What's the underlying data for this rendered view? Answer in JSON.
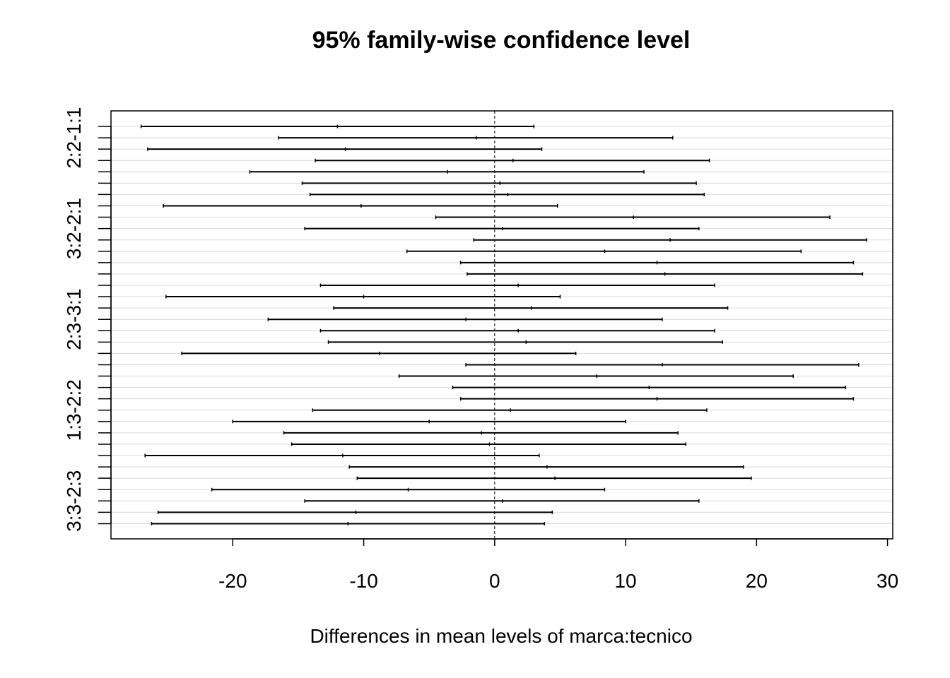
{
  "chart_data": {
    "type": "interval",
    "title": "95% family-wise confidence level",
    "xlabel": "Differences in mean levels of marca:tecnico",
    "ylabel": "",
    "xlim": [
      -29.3,
      30.4
    ],
    "xticks": [
      -20,
      -10,
      0,
      10,
      20,
      30
    ],
    "reference_line": 0,
    "grid": true,
    "printed_y_labels": [
      {
        "label": "2:2-1:1",
        "row": 1
      },
      {
        "label": "3:2-2:1",
        "row": 9
      },
      {
        "label": "2:3-3:1",
        "row": 17
      },
      {
        "label": "1:3-2:2",
        "row": 25
      },
      {
        "label": "3:3-2:3",
        "row": 33
      }
    ],
    "comparisons": [
      {
        "lwr": -27.0,
        "diff": -12.0,
        "upr": 3.0
      },
      {
        "lwr": -16.5,
        "diff": -1.4,
        "upr": 13.6
      },
      {
        "lwr": -26.5,
        "diff": -11.4,
        "upr": 3.6
      },
      {
        "lwr": -13.7,
        "diff": 1.4,
        "upr": 16.4
      },
      {
        "lwr": -18.7,
        "diff": -3.6,
        "upr": 11.4
      },
      {
        "lwr": -14.7,
        "diff": 0.4,
        "upr": 15.4
      },
      {
        "lwr": -14.1,
        "diff": 1.0,
        "upr": 16.0
      },
      {
        "lwr": -25.3,
        "diff": -10.2,
        "upr": 4.8
      },
      {
        "lwr": -4.5,
        "diff": 10.6,
        "upr": 25.6
      },
      {
        "lwr": -14.5,
        "diff": 0.6,
        "upr": 15.6
      },
      {
        "lwr": -1.6,
        "diff": 13.4,
        "upr": 28.4
      },
      {
        "lwr": -6.7,
        "diff": 8.4,
        "upr": 23.4
      },
      {
        "lwr": -2.6,
        "diff": 12.4,
        "upr": 27.4
      },
      {
        "lwr": -2.1,
        "diff": 13.0,
        "upr": 28.1
      },
      {
        "lwr": -13.3,
        "diff": 1.8,
        "upr": 16.8
      },
      {
        "lwr": -25.1,
        "diff": -10.0,
        "upr": 5.0
      },
      {
        "lwr": -12.3,
        "diff": 2.8,
        "upr": 17.8
      },
      {
        "lwr": -17.3,
        "diff": -2.2,
        "upr": 12.8
      },
      {
        "lwr": -13.3,
        "diff": 1.8,
        "upr": 16.8
      },
      {
        "lwr": -12.7,
        "diff": 2.4,
        "upr": 17.4
      },
      {
        "lwr": -23.9,
        "diff": -8.8,
        "upr": 6.2
      },
      {
        "lwr": -2.2,
        "diff": 12.8,
        "upr": 27.8
      },
      {
        "lwr": -7.3,
        "diff": 7.8,
        "upr": 22.8
      },
      {
        "lwr": -3.2,
        "diff": 11.8,
        "upr": 26.8
      },
      {
        "lwr": -2.6,
        "diff": 12.4,
        "upr": 27.4
      },
      {
        "lwr": -13.9,
        "diff": 1.2,
        "upr": 16.2
      },
      {
        "lwr": -20.0,
        "diff": -5.0,
        "upr": 10.0
      },
      {
        "lwr": -16.1,
        "diff": -1.0,
        "upr": 14.0
      },
      {
        "lwr": -15.5,
        "diff": -0.4,
        "upr": 14.6
      },
      {
        "lwr": -26.7,
        "diff": -11.6,
        "upr": 3.4
      },
      {
        "lwr": -11.1,
        "diff": 4.0,
        "upr": 19.0
      },
      {
        "lwr": -10.5,
        "diff": 4.6,
        "upr": 19.6
      },
      {
        "lwr": -21.6,
        "diff": -6.6,
        "upr": 8.4
      },
      {
        "lwr": -14.5,
        "diff": 0.6,
        "upr": 15.6
      },
      {
        "lwr": -25.7,
        "diff": -10.6,
        "upr": 4.4
      },
      {
        "lwr": -26.2,
        "diff": -11.2,
        "upr": 3.8
      }
    ]
  }
}
